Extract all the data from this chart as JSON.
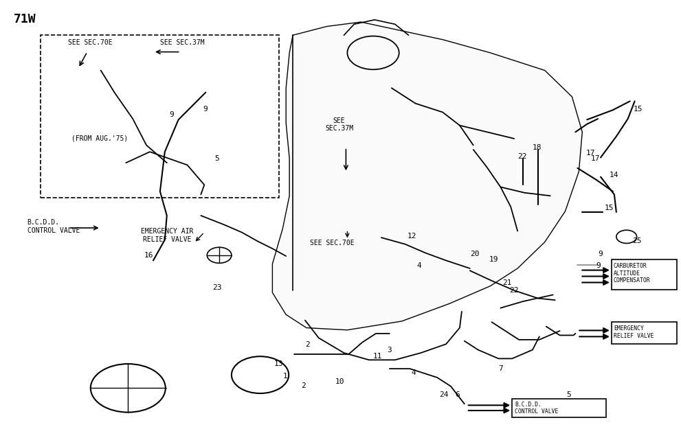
{
  "title": "71W",
  "bg_color": "#ffffff",
  "fig_width": 9.91,
  "fig_height": 6.41,
  "labels": {
    "top_left_code": "71W",
    "see_sec_70e_left": "SEE SEC.70E",
    "see_sec_37m_left": "SEE SEC.37M",
    "see_sec_37m_center": "SEE\nSEC.37M",
    "see_sec_70e_center": "SEE SEC.70E",
    "from_aug75": "(FROM AUG.'75)",
    "bcdd_left": "B.C.D.D.\nCONTROL VALVE",
    "emergency_air": "EMERGENCY AIR\nRELIEF VALVE",
    "carb_comp": "CARBURETOR\nALTITUDE\nCOMPENSATOR",
    "emergency_relief": "EMERGENCY\nRELIEF VALVE",
    "bcdd_right": "B.C.D.D.\nCONTROL VALVE"
  },
  "text_color": "#000000",
  "line_color": "#000000"
}
